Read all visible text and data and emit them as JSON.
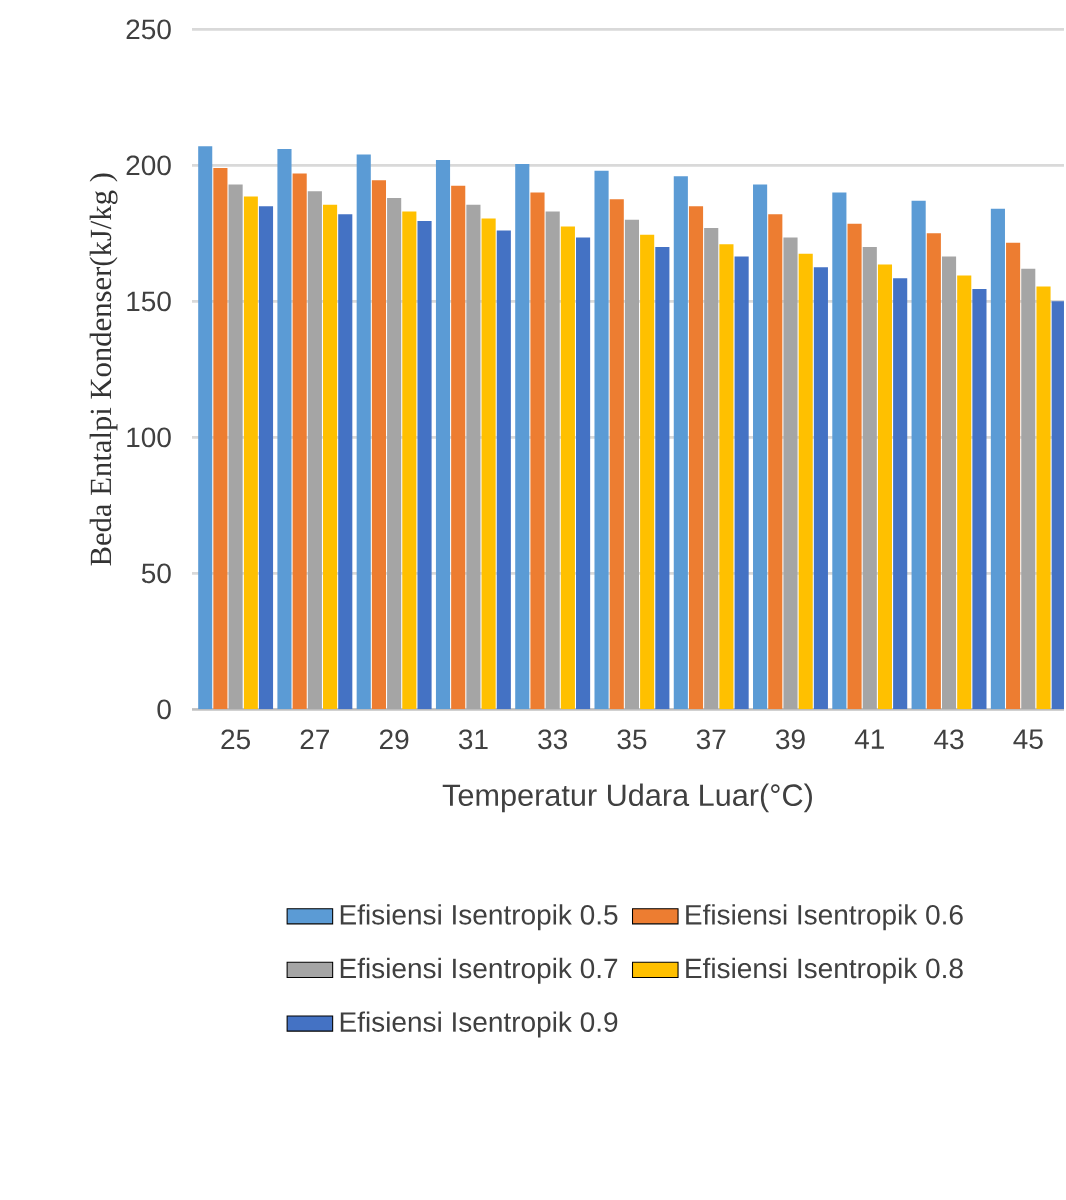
{
  "chart_data": {
    "type": "bar",
    "xlabel": "Temperatur Udara Luar(°C)",
    "ylabel": "Beda Entalpi Kondenser(kJ/kg )",
    "categories": [
      "25",
      "27",
      "29",
      "31",
      "33",
      "35",
      "37",
      "39",
      "41",
      "43",
      "45"
    ],
    "ylim": [
      0,
      250
    ],
    "yticks": [
      0,
      50,
      100,
      150,
      200,
      250
    ],
    "grid": "y",
    "legend": "bottom",
    "series": [
      {
        "name": "Efisiensi Isentropik 0.5",
        "color": "#5b9bd5",
        "values": [
          207,
          206,
          204,
          202,
          200.5,
          198,
          196,
          193,
          190,
          187,
          184
        ]
      },
      {
        "name": "Efisiensi Isentropik 0.6",
        "color": "#ed7d31",
        "values": [
          199,
          197,
          194.5,
          192.5,
          190,
          187.5,
          185,
          182,
          178.5,
          175,
          171.5
        ]
      },
      {
        "name": "Efisiensi Isentropik 0.7",
        "color": "#a5a5a5",
        "values": [
          193,
          190.5,
          188,
          185.5,
          183,
          180,
          177,
          173.5,
          170,
          166.5,
          162
        ]
      },
      {
        "name": "Efisiensi Isentropik 0.8",
        "color": "#ffc000",
        "values": [
          188.5,
          185.5,
          183,
          180.5,
          177.5,
          174.5,
          171,
          167.5,
          163.5,
          159.5,
          155.5
        ]
      },
      {
        "name": "Efisiensi Isentropik 0.9",
        "color": "#4472c4",
        "values": [
          185,
          182,
          179.5,
          176,
          173.5,
          170,
          166.5,
          162.5,
          158.5,
          154.5,
          150
        ]
      }
    ]
  }
}
